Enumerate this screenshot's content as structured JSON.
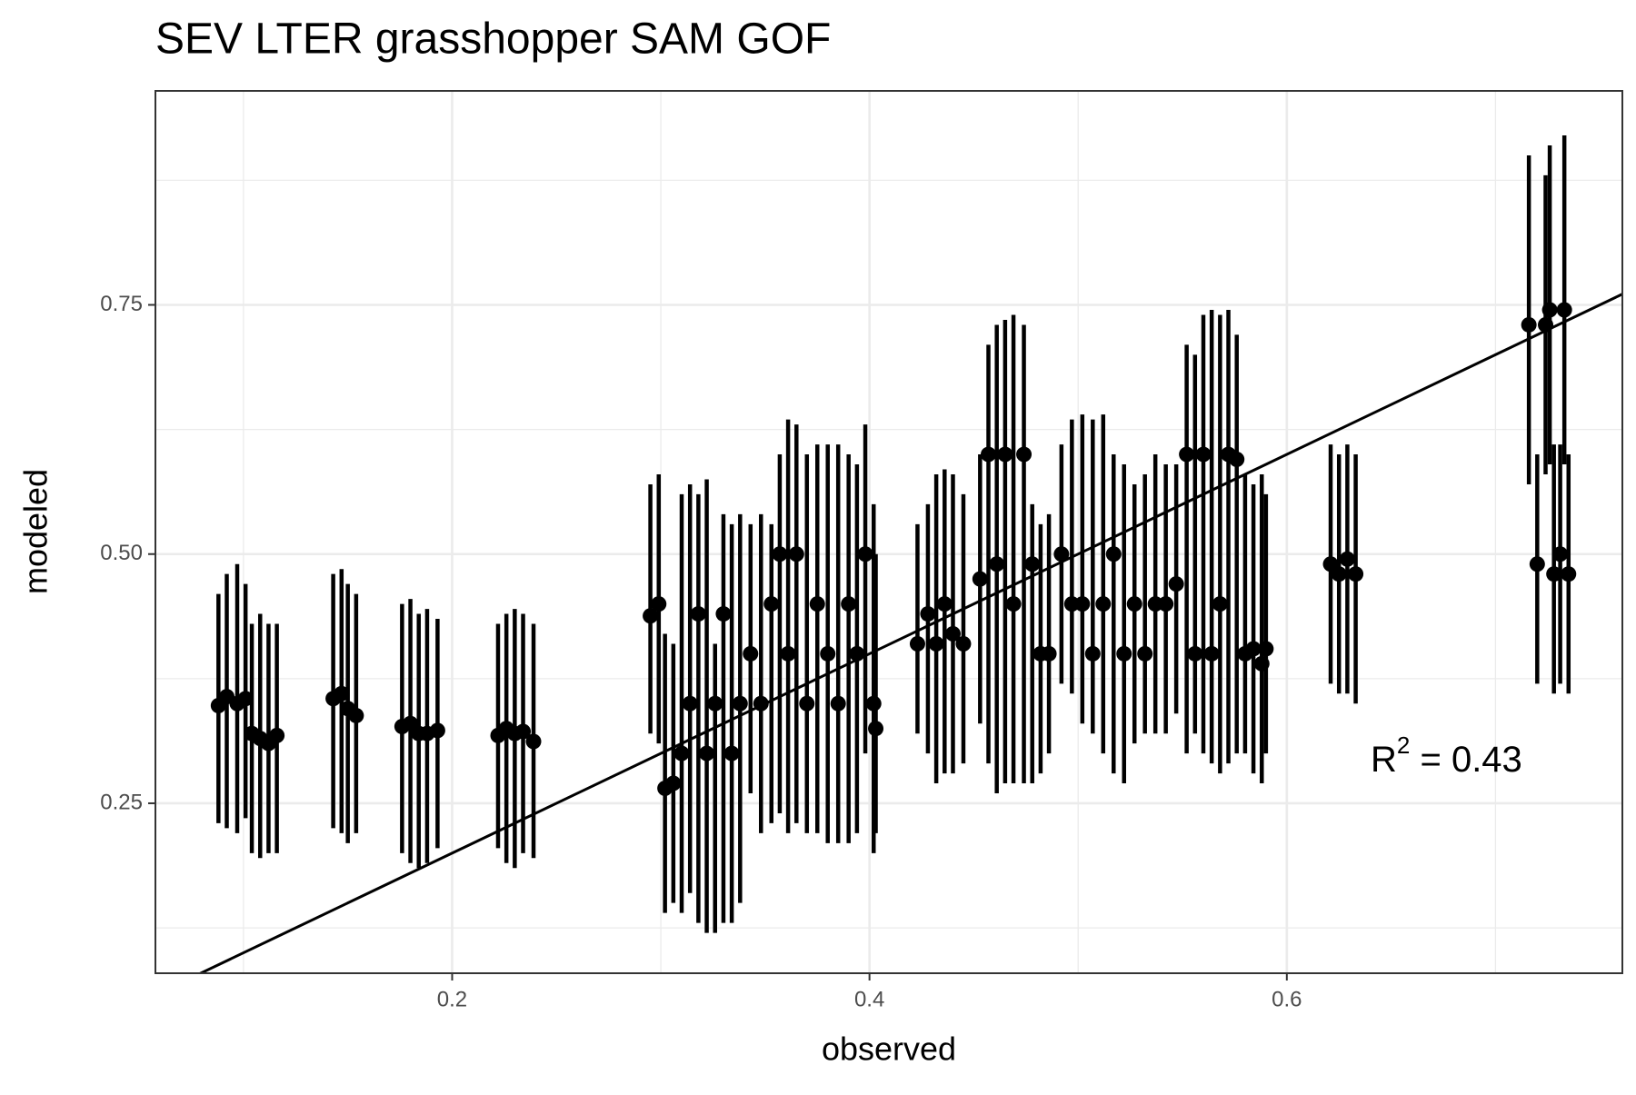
{
  "chart_data": {
    "type": "errorbar-scatter",
    "title": "SEV LTER grasshopper SAM GOF",
    "x_label": "observed",
    "y_label": "modeled",
    "annotation": {
      "base": "R",
      "superscript": "2",
      "rest": " = 0.43"
    },
    "xlim": [
      0.0578,
      0.7608
    ],
    "ylim": [
      0.0795,
      0.9647
    ],
    "xticks": [
      0.2,
      0.4,
      0.6
    ],
    "yticks": [
      0.25,
      {
        "value": 0.5,
        "label": "0.50"
      },
      0.75
    ],
    "minor_xticks": [
      0.1,
      0.3,
      0.5,
      0.7
    ],
    "minor_yticks": [
      0.125,
      0.375,
      0.625,
      0.875
    ],
    "grid": true,
    "color": "#000000",
    "reference_line": {
      "slope": 1,
      "intercept": 0
    },
    "x": [
      0.088,
      0.092,
      0.097,
      0.101,
      0.104,
      0.108,
      0.112,
      0.116,
      0.143,
      0.147,
      0.15,
      0.154,
      0.176,
      0.18,
      0.184,
      0.188,
      0.193,
      0.222,
      0.226,
      0.23,
      0.234,
      0.239,
      0.295,
      0.299,
      0.302,
      0.306,
      0.31,
      0.314,
      0.318,
      0.322,
      0.326,
      0.33,
      0.334,
      0.338,
      0.343,
      0.348,
      0.353,
      0.357,
      0.361,
      0.365,
      0.37,
      0.375,
      0.38,
      0.385,
      0.39,
      0.394,
      0.398,
      0.402,
      0.403,
      0.423,
      0.428,
      0.432,
      0.436,
      0.44,
      0.445,
      0.453,
      0.457,
      0.461,
      0.465,
      0.469,
      0.474,
      0.478,
      0.482,
      0.486,
      0.492,
      0.497,
      0.502,
      0.507,
      0.512,
      0.517,
      0.522,
      0.527,
      0.532,
      0.537,
      0.542,
      0.547,
      0.552,
      0.556,
      0.56,
      0.564,
      0.568,
      0.572,
      0.576,
      0.58,
      0.584,
      0.588,
      0.59,
      0.621,
      0.625,
      0.629,
      0.633,
      0.716,
      0.72,
      0.724,
      0.726,
      0.728,
      0.731,
      0.733,
      0.735
    ],
    "values": [
      0.348,
      0.357,
      0.35,
      0.355,
      0.32,
      0.315,
      0.31,
      0.318,
      0.355,
      0.36,
      0.345,
      0.338,
      0.327,
      0.33,
      0.32,
      0.32,
      0.323,
      0.318,
      0.325,
      0.32,
      0.322,
      0.312,
      0.438,
      0.45,
      0.265,
      0.27,
      0.3,
      0.35,
      0.44,
      0.3,
      0.35,
      0.44,
      0.3,
      0.35,
      0.4,
      0.35,
      0.45,
      0.5,
      0.4,
      0.5,
      0.35,
      0.45,
      0.4,
      0.35,
      0.45,
      0.4,
      0.5,
      0.35,
      0.325,
      0.41,
      0.44,
      0.41,
      0.45,
      0.42,
      0.41,
      0.475,
      0.6,
      0.49,
      0.6,
      0.45,
      0.6,
      0.49,
      0.4,
      0.4,
      0.5,
      0.45,
      0.45,
      0.4,
      0.45,
      0.5,
      0.4,
      0.45,
      0.4,
      0.45,
      0.45,
      0.47,
      0.6,
      0.4,
      0.6,
      0.4,
      0.45,
      0.6,
      0.595,
      0.4,
      0.405,
      0.39,
      0.405,
      0.49,
      0.48,
      0.495,
      0.48,
      0.73,
      0.49,
      0.73,
      0.745,
      0.48,
      0.5,
      0.745,
      0.48
    ],
    "lower": [
      0.23,
      0.225,
      0.22,
      0.235,
      0.2,
      0.195,
      0.2,
      0.2,
      0.225,
      0.22,
      0.21,
      0.22,
      0.2,
      0.19,
      0.185,
      0.19,
      0.205,
      0.205,
      0.19,
      0.185,
      0.2,
      0.195,
      0.32,
      0.31,
      0.14,
      0.15,
      0.14,
      0.16,
      0.13,
      0.12,
      0.12,
      0.13,
      0.13,
      0.15,
      0.26,
      0.22,
      0.23,
      0.24,
      0.22,
      0.23,
      0.22,
      0.22,
      0.21,
      0.21,
      0.21,
      0.22,
      0.3,
      0.2,
      0.22,
      0.32,
      0.3,
      0.27,
      0.28,
      0.28,
      0.29,
      0.33,
      0.29,
      0.26,
      0.27,
      0.27,
      0.27,
      0.27,
      0.28,
      0.3,
      0.37,
      0.36,
      0.33,
      0.32,
      0.3,
      0.28,
      0.27,
      0.31,
      0.32,
      0.32,
      0.32,
      0.34,
      0.3,
      0.32,
      0.3,
      0.29,
      0.28,
      0.29,
      0.3,
      0.3,
      0.28,
      0.27,
      0.3,
      0.37,
      0.36,
      0.36,
      0.35,
      0.57,
      0.37,
      0.58,
      0.59,
      0.36,
      0.37,
      0.59,
      0.36
    ],
    "upper": [
      0.46,
      0.48,
      0.49,
      0.47,
      0.43,
      0.44,
      0.43,
      0.43,
      0.48,
      0.485,
      0.47,
      0.46,
      0.45,
      0.455,
      0.44,
      0.445,
      0.435,
      0.43,
      0.44,
      0.445,
      0.44,
      0.43,
      0.57,
      0.58,
      0.42,
      0.41,
      0.56,
      0.57,
      0.56,
      0.575,
      0.41,
      0.54,
      0.53,
      0.54,
      0.53,
      0.54,
      0.53,
      0.6,
      0.635,
      0.63,
      0.6,
      0.61,
      0.61,
      0.61,
      0.6,
      0.59,
      0.63,
      0.55,
      0.5,
      0.53,
      0.55,
      0.58,
      0.585,
      0.58,
      0.56,
      0.6,
      0.71,
      0.73,
      0.735,
      0.74,
      0.73,
      0.55,
      0.53,
      0.54,
      0.61,
      0.635,
      0.64,
      0.635,
      0.64,
      0.6,
      0.59,
      0.57,
      0.58,
      0.6,
      0.59,
      0.59,
      0.71,
      0.7,
      0.74,
      0.745,
      0.74,
      0.745,
      0.72,
      0.58,
      0.57,
      0.58,
      0.56,
      0.61,
      0.6,
      0.61,
      0.6,
      0.9,
      0.6,
      0.88,
      0.91,
      0.61,
      0.61,
      0.92,
      0.6
    ]
  }
}
